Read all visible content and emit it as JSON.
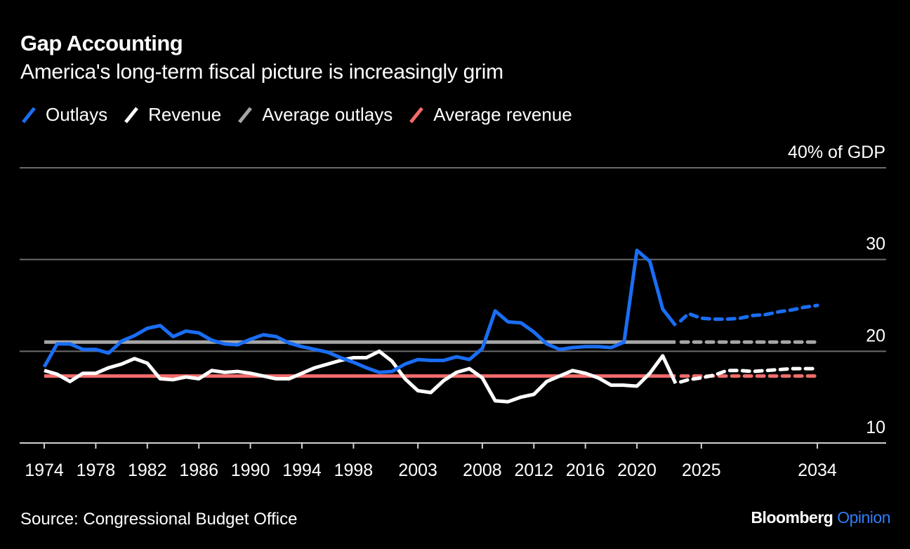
{
  "header": {
    "title": "Gap Accounting",
    "subtitle": "America's long-term fiscal picture is increasingly grim"
  },
  "footer": {
    "source": "Source: Congressional Budget Office",
    "logo_brand": "Bloomberg",
    "logo_product": "Opinion"
  },
  "chart_data": {
    "type": "line",
    "title": "Gap Accounting",
    "subtitle": "America's long-term fiscal picture is increasingly grim",
    "ylabel": "40% of GDP",
    "y_ticks": [
      10,
      20,
      30,
      40
    ],
    "y_tick_labels": [
      "10",
      "20",
      "30",
      "40% of GDP"
    ],
    "ylim": [
      10,
      40
    ],
    "xlim": [
      1974,
      2034
    ],
    "x_ticks": [
      "1974",
      "1978",
      "1982",
      "1986",
      "1990",
      "1994",
      "1998",
      "2003",
      "2008",
      "2012",
      "2016",
      "2020",
      "2025",
      "2034"
    ],
    "grid": true,
    "legend_position": "top-left",
    "series": [
      {
        "name": "Outlays",
        "color": "#1a6ef5",
        "x_start": 1974,
        "values": [
          18.3,
          20.8,
          20.8,
          20.2,
          20.2,
          19.8,
          21.1,
          21.7,
          22.5,
          22.8,
          21.6,
          22.2,
          22.0,
          21.2,
          20.8,
          20.7,
          21.3,
          21.8,
          21.6,
          20.9,
          20.5,
          20.2,
          19.9,
          19.3,
          18.8,
          18.2,
          17.7,
          17.8,
          18.6,
          19.1,
          19.0,
          19.0,
          19.4,
          19.1,
          20.3,
          24.4,
          23.2,
          23.1,
          22.1,
          20.8,
          20.2,
          20.4,
          20.5,
          20.5,
          20.4,
          21.0,
          31.0,
          29.8,
          24.6,
          22.8
        ],
        "projected_x_start": 2024,
        "projected_values": [
          24.1,
          23.6,
          23.5,
          23.5,
          23.6,
          23.9,
          24.0,
          24.3,
          24.5,
          24.8,
          25.0
        ]
      },
      {
        "name": "Revenue",
        "color": "#ffffff",
        "x_start": 1974,
        "values": [
          17.9,
          17.5,
          16.7,
          17.6,
          17.6,
          18.2,
          18.6,
          19.2,
          18.7,
          17.0,
          16.9,
          17.2,
          17.0,
          17.9,
          17.7,
          17.8,
          17.6,
          17.3,
          17.0,
          17.0,
          17.6,
          18.2,
          18.6,
          19.0,
          19.3,
          19.3,
          20.0,
          18.9,
          17.0,
          15.7,
          15.5,
          16.8,
          17.7,
          18.1,
          17.1,
          14.6,
          14.5,
          15.0,
          15.3,
          16.7,
          17.3,
          17.9,
          17.6,
          17.1,
          16.3,
          16.3,
          16.2,
          17.6,
          19.5,
          16.5
        ],
        "projected_x_start": 2024,
        "projected_values": [
          16.9,
          17.1,
          17.4,
          17.9,
          17.9,
          17.8,
          17.9,
          18.0,
          18.1,
          18.1,
          18.1
        ]
      },
      {
        "name": "Average outlays",
        "color": "#a6a6a6",
        "constant": 21.0,
        "solid_until": 2023
      },
      {
        "name": "Average revenue",
        "color": "#f26b6b",
        "constant": 17.3,
        "solid_until": 2023
      }
    ]
  }
}
